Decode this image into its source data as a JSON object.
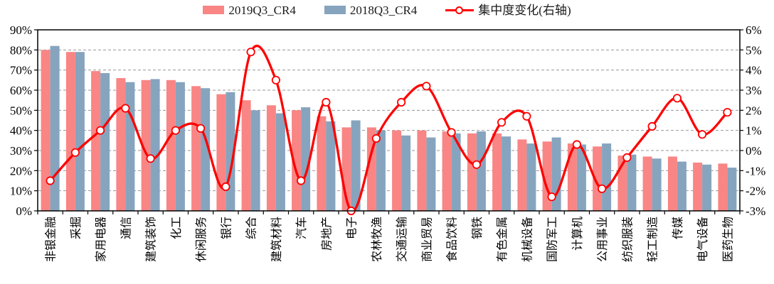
{
  "chart_data": {
    "type": "combo-bar-line",
    "title": "",
    "categories": [
      "非银金融",
      "采掘",
      "家用电器",
      "通信",
      "建筑装饰",
      "化工",
      "休闲服务",
      "银行",
      "综合",
      "建筑材料",
      "汽车",
      "房地产",
      "电子",
      "农林牧渔",
      "交通运输",
      "商业贸易",
      "食品饮料",
      "钢铁",
      "有色金属",
      "机械设备",
      "国防军工",
      "计算机",
      "公用事业",
      "纺织服装",
      "轻工制造",
      "传媒",
      "电气设备",
      "医药生物"
    ],
    "series": [
      {
        "name": "2019Q3_CR4",
        "type": "bar",
        "axis": "left",
        "color": "#F98585",
        "values": [
          80,
          79,
          69.5,
          66,
          65,
          65,
          62,
          58,
          55,
          52.5,
          50,
          47,
          41.5,
          41.5,
          40,
          40,
          39.5,
          38.5,
          38.5,
          35.5,
          34.5,
          33.5,
          32,
          27.5,
          27,
          27,
          24,
          23.5
        ]
      },
      {
        "name": "2018Q3_CR4",
        "type": "bar",
        "axis": "left",
        "color": "#86A4BE",
        "values": [
          82,
          79,
          68.5,
          64,
          65.5,
          64,
          61,
          59,
          50,
          48.5,
          51.5,
          44.5,
          45,
          40,
          37.5,
          36.5,
          38.5,
          39.5,
          37,
          33.5,
          36.5,
          33,
          33.5,
          28,
          26,
          24.5,
          23,
          21.5
        ]
      },
      {
        "name": "集中度变化(右轴)",
        "type": "line",
        "axis": "right",
        "color": "#FF0000",
        "marker": "open-circle",
        "marker_fill": "#FFFFFF",
        "values": [
          -1.5,
          -0.1,
          1.0,
          2.1,
          -0.4,
          1.0,
          1.1,
          -1.8,
          4.9,
          3.5,
          -1.5,
          2.4,
          -3.0,
          0.6,
          2.4,
          3.2,
          0.9,
          -0.7,
          1.4,
          1.7,
          -2.3,
          0.3,
          -1.9,
          -0.35,
          1.2,
          2.6,
          0.8,
          1.9
        ]
      }
    ],
    "left_axis": {
      "min": 0,
      "max": 90,
      "step": 10,
      "unit": "%",
      "tick_labels": [
        "0%",
        "10%",
        "20%",
        "30%",
        "40%",
        "50%",
        "60%",
        "70%",
        "80%",
        "90%"
      ]
    },
    "right_axis": {
      "min": -3,
      "max": 6,
      "step": 1,
      "unit": "%",
      "tick_labels": [
        "-3%",
        "-2%",
        "-1%",
        "0%",
        "1%",
        "2%",
        "3%",
        "4%",
        "5%",
        "6%"
      ]
    },
    "legend_position": "top",
    "grid": true,
    "gridline_color": "#979797",
    "border_color": "#000000",
    "x_labels_rotation": 90
  }
}
